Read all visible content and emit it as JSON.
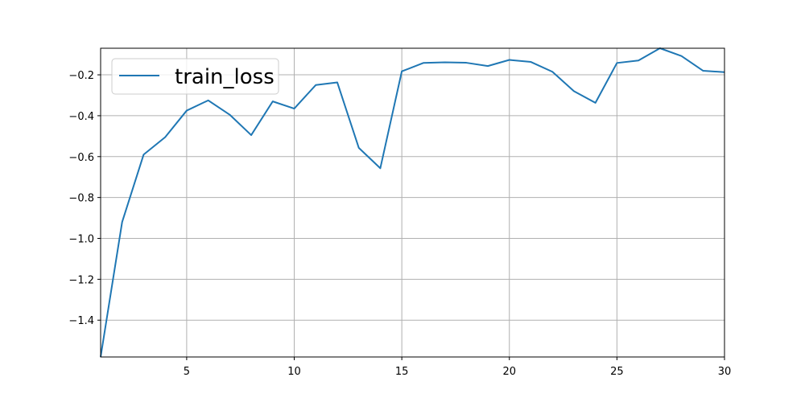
{
  "chart_data": {
    "type": "line",
    "title": "",
    "xlabel": "",
    "ylabel": "",
    "xlim": [
      1,
      30
    ],
    "ylim": [
      -1.58,
      -0.07
    ],
    "grid": true,
    "legend_position": "top-left",
    "x_ticks": [
      {
        "value": 5,
        "label": "5"
      },
      {
        "value": 10,
        "label": "10"
      },
      {
        "value": 15,
        "label": "15"
      },
      {
        "value": 20,
        "label": "20"
      },
      {
        "value": 25,
        "label": "25"
      },
      {
        "value": 30,
        "label": "30"
      }
    ],
    "y_ticks": [
      {
        "value": -1.4,
        "label": "−1.4"
      },
      {
        "value": -1.2,
        "label": "−1.2"
      },
      {
        "value": -1.0,
        "label": "−1.0"
      },
      {
        "value": -0.8,
        "label": "−0.8"
      },
      {
        "value": -0.6,
        "label": "−0.6"
      },
      {
        "value": -0.4,
        "label": "−0.4"
      },
      {
        "value": -0.2,
        "label": "−0.2"
      }
    ],
    "series": [
      {
        "name": "train_loss",
        "color": "#1f77b4",
        "x": [
          1,
          2,
          3,
          4,
          5,
          6,
          7,
          8,
          9,
          10,
          11,
          12,
          13,
          14,
          15,
          16,
          17,
          18,
          19,
          20,
          21,
          22,
          23,
          24,
          25,
          26,
          27,
          28,
          29,
          30
        ],
        "y": [
          -1.58,
          -0.92,
          -0.59,
          -0.505,
          -0.375,
          -0.325,
          -0.395,
          -0.495,
          -0.33,
          -0.365,
          -0.25,
          -0.237,
          -0.557,
          -0.657,
          -0.183,
          -0.142,
          -0.139,
          -0.141,
          -0.157,
          -0.127,
          -0.137,
          -0.185,
          -0.28,
          -0.337,
          -0.142,
          -0.13,
          -0.07,
          -0.108,
          -0.18,
          -0.187
        ]
      }
    ]
  }
}
